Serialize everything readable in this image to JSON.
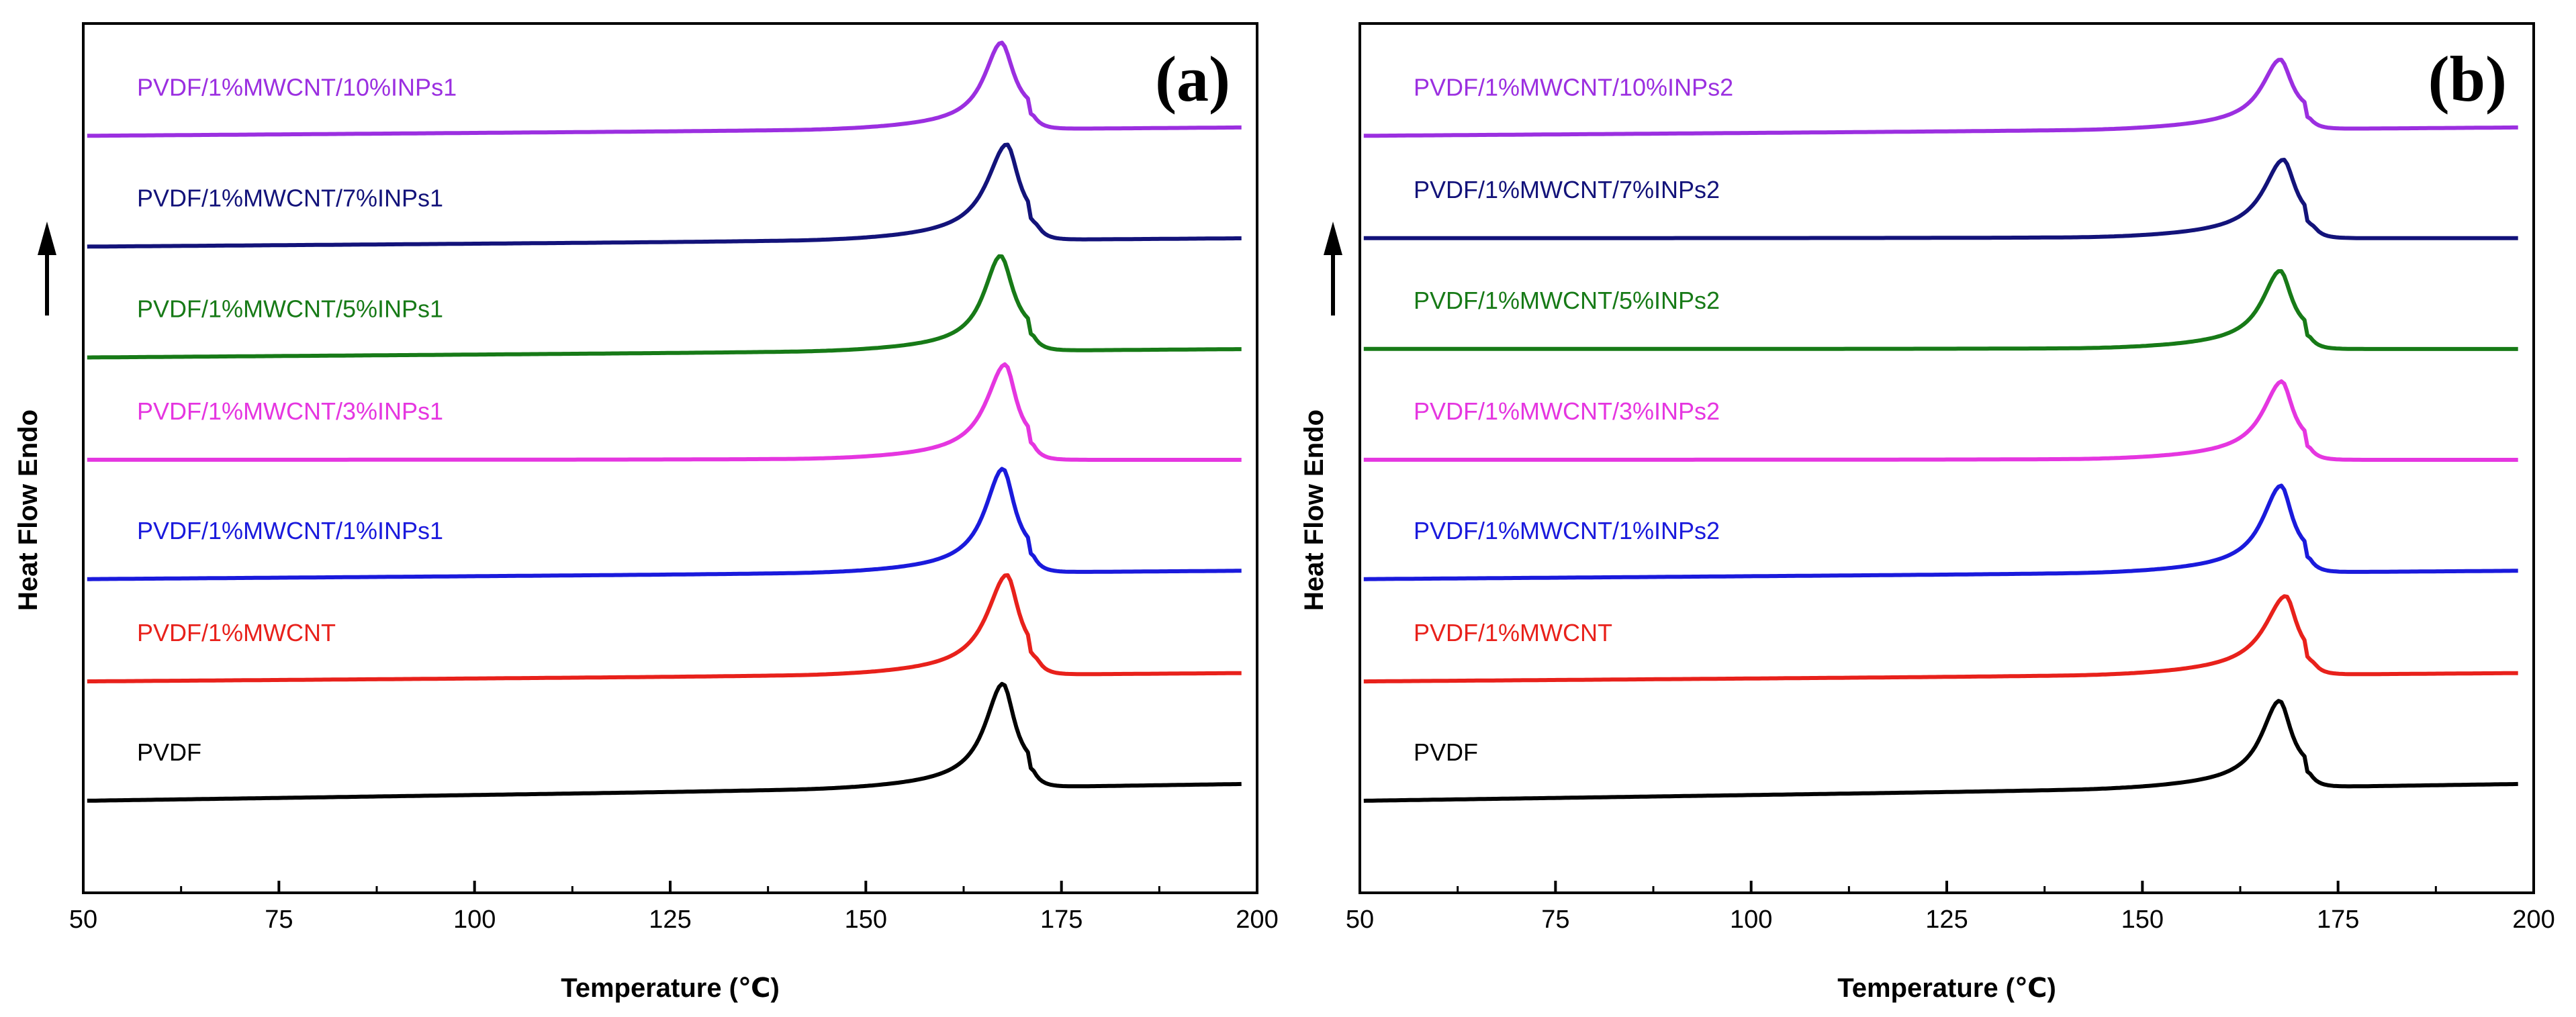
{
  "chart_data": [
    {
      "type": "line",
      "panel_label": "(a)",
      "xlabel": "Temperature (℃)",
      "ylabel": "Heat Flow Endo",
      "xlim": [
        50,
        200
      ],
      "xticks": [
        "50",
        "75",
        "100",
        "125",
        "150",
        "175",
        "200"
      ],
      "yticks_shown": false,
      "grid": false,
      "y_arrow": "up",
      "series": [
        {
          "name": "PVDF",
          "color": "#000000",
          "peak_x": 167.5,
          "onset_x": 163,
          "end_x": 171.5,
          "baseline_start": 0.1,
          "baseline_end": 0.12,
          "peak_height": 0.11
        },
        {
          "name": "PVDF/1%MWCNT",
          "color": "#e8211b",
          "peak_x": 168,
          "onset_x": 163,
          "end_x": 172,
          "baseline_start": 0.24,
          "baseline_end": 0.25,
          "peak_height": 0.105
        },
        {
          "name": "PVDF/1%MWCNT/1%INPs1",
          "color": "#1a1adc",
          "peak_x": 167.5,
          "onset_x": 163,
          "end_x": 171.5,
          "baseline_start": 0.36,
          "baseline_end": 0.37,
          "peak_height": 0.11
        },
        {
          "name": "PVDF/1%MWCNT/3%INPs1",
          "color": "#e536e0",
          "peak_x": 167.8,
          "onset_x": 163,
          "end_x": 171.5,
          "baseline_start": 0.5,
          "baseline_end": 0.5,
          "peak_height": 0.1
        },
        {
          "name": "PVDF/1%MWCNT/5%INPs1",
          "color": "#177a17",
          "peak_x": 167.2,
          "onset_x": 163,
          "end_x": 171.5,
          "baseline_start": 0.62,
          "baseline_end": 0.63,
          "peak_height": 0.1
        },
        {
          "name": "PVDF/1%MWCNT/7%INPs1",
          "color": "#13137a",
          "peak_x": 168,
          "onset_x": 163,
          "end_x": 172,
          "baseline_start": 0.75,
          "baseline_end": 0.76,
          "peak_height": 0.1
        },
        {
          "name": "PVDF/1%MWCNT/10%INPs1",
          "color": "#9b2fe0",
          "peak_x": 167.3,
          "onset_x": 163,
          "end_x": 171.5,
          "baseline_start": 0.88,
          "baseline_end": 0.89,
          "peak_height": 0.09
        }
      ]
    },
    {
      "type": "line",
      "panel_label": "(b)",
      "xlabel": "Temperature (℃)",
      "ylabel": "Heat Flow Endo",
      "xlim": [
        50,
        200
      ],
      "xticks": [
        "50",
        "75",
        "100",
        "125",
        "150",
        "175",
        "200"
      ],
      "yticks_shown": false,
      "grid": false,
      "y_arrow": "up",
      "series": [
        {
          "name": "PVDF",
          "color": "#000000",
          "peak_x": 167.5,
          "onset_x": 163,
          "end_x": 171.5,
          "baseline_start": 0.1,
          "baseline_end": 0.12,
          "peak_height": 0.09
        },
        {
          "name": "PVDF/1%MWCNT",
          "color": "#e8211b",
          "peak_x": 168.3,
          "onset_x": 163,
          "end_x": 172,
          "baseline_start": 0.24,
          "baseline_end": 0.25,
          "peak_height": 0.08
        },
        {
          "name": "PVDF/1%MWCNT/1%INPs2",
          "color": "#1a1adc",
          "peak_x": 167.7,
          "onset_x": 163,
          "end_x": 171.5,
          "baseline_start": 0.36,
          "baseline_end": 0.37,
          "peak_height": 0.09
        },
        {
          "name": "PVDF/1%MWCNT/3%INPs2",
          "color": "#e536e0",
          "peak_x": 167.8,
          "onset_x": 163,
          "end_x": 171.5,
          "baseline_start": 0.5,
          "baseline_end": 0.5,
          "peak_height": 0.08
        },
        {
          "name": "PVDF/1%MWCNT/5%INPs2",
          "color": "#177a17",
          "peak_x": 167.6,
          "onset_x": 163,
          "end_x": 171.5,
          "baseline_start": 0.63,
          "baseline_end": 0.63,
          "peak_height": 0.08
        },
        {
          "name": "PVDF/1%MWCNT/7%INPs2",
          "color": "#13137a",
          "peak_x": 168,
          "onset_x": 163,
          "end_x": 172,
          "baseline_start": 0.76,
          "baseline_end": 0.76,
          "peak_height": 0.08
        },
        {
          "name": "PVDF/1%MWCNT/10%INPs2",
          "color": "#9b2fe0",
          "peak_x": 167.6,
          "onset_x": 163,
          "end_x": 171.5,
          "baseline_start": 0.88,
          "baseline_end": 0.89,
          "peak_height": 0.07
        }
      ]
    }
  ]
}
